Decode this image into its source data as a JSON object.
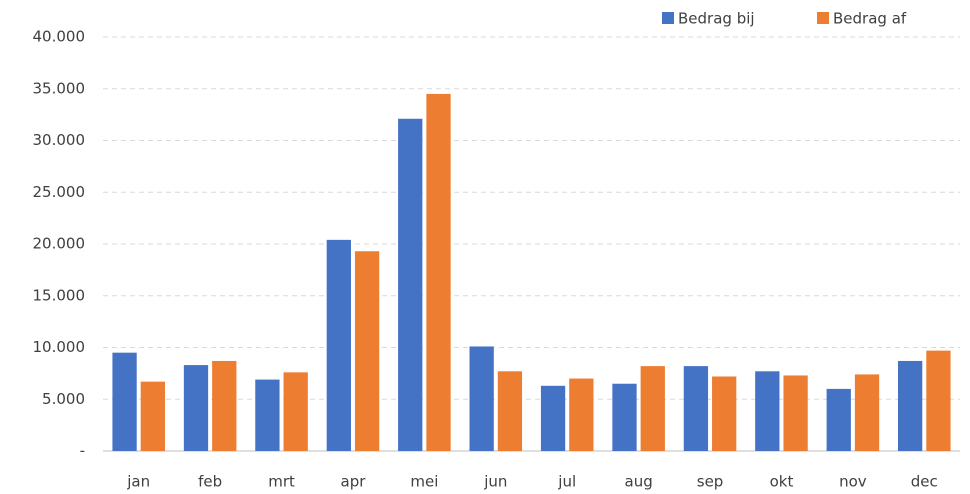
{
  "chart_data": {
    "type": "bar",
    "categories": [
      "jan",
      "feb",
      "mrt",
      "apr",
      "mei",
      "jun",
      "jul",
      "aug",
      "sep",
      "okt",
      "nov",
      "dec"
    ],
    "series": [
      {
        "name": "Bedrag bij",
        "color": "#4472c4",
        "values": [
          9500,
          8300,
          6900,
          20400,
          32100,
          10100,
          6300,
          6500,
          8200,
          7700,
          6000,
          8700
        ]
      },
      {
        "name": "Bedrag af",
        "color": "#ed7d31",
        "values": [
          6700,
          8700,
          7600,
          19300,
          34500,
          7700,
          7000,
          8200,
          7200,
          7300,
          7400,
          9700
        ]
      }
    ],
    "ylim": [
      0,
      40000
    ],
    "yticks": [
      {
        "value": 0,
        "label": "-"
      },
      {
        "value": 5000,
        "label": "5.000"
      },
      {
        "value": 10000,
        "label": "10.000"
      },
      {
        "value": 15000,
        "label": "15.000"
      },
      {
        "value": 20000,
        "label": "20.000"
      },
      {
        "value": 25000,
        "label": "25.000"
      },
      {
        "value": 30000,
        "label": "30.000"
      },
      {
        "value": 35000,
        "label": "35.000"
      },
      {
        "value": 40000,
        "label": "40.000"
      }
    ],
    "grid": true,
    "legend": "top-right"
  }
}
